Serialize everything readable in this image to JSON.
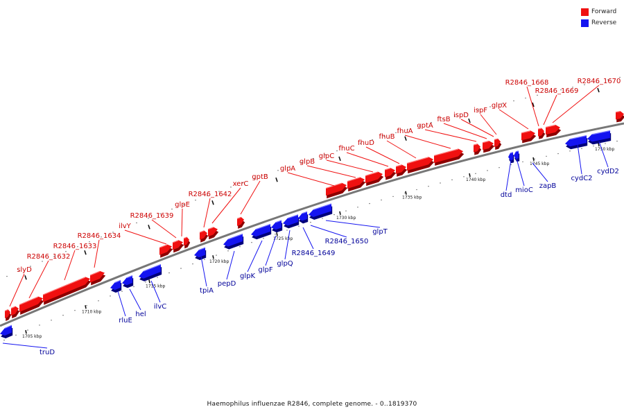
{
  "colors": {
    "forward": "#f01010",
    "reverse": "#1414f0",
    "backbone": "#777777",
    "fwd_label": "#cc0000",
    "rev_label": "#000099"
  },
  "legend": [
    {
      "label": "Forward",
      "color": "#f01010"
    },
    {
      "label": "Reverse",
      "color": "#1414f0"
    }
  ],
  "caption": "Haemophilus influenzae R2846, complete genome. - 0..1819370",
  "scale_labels": [
    "1705 kbp",
    "1710 kbp",
    "1715 kbp",
    "1720 kbp",
    "1725 kbp",
    "1730 kbp",
    "1735 kbp",
    "1740 kbp",
    "1745 kbp",
    "1750 kbp"
  ],
  "forward_genes": [
    "slyD",
    "R2846_1632",
    "R2846_1633",
    "R2846_1634",
    "ilvY",
    "R2846_1639",
    "glpE",
    "R2846_1642",
    "xerC",
    "gptB",
    "glpA",
    "glpB",
    "glpC",
    "fhuC",
    "fhuD",
    "fhuB",
    "fhuA",
    "gptA",
    "ftsB",
    "ispD",
    "ispF",
    "glpX",
    "R2846_1668",
    "R2846_1669",
    "R2846_1670"
  ],
  "reverse_genes": [
    "truD",
    "rluE",
    "hel",
    "ilvC",
    "tpiA",
    "pepD",
    "glpK",
    "glpF",
    "glpQ",
    "R2846_1649",
    "R2846_1650",
    "glpT",
    "dtd",
    "mioC",
    "zapB",
    "cydC2",
    "cydD2"
  ]
}
